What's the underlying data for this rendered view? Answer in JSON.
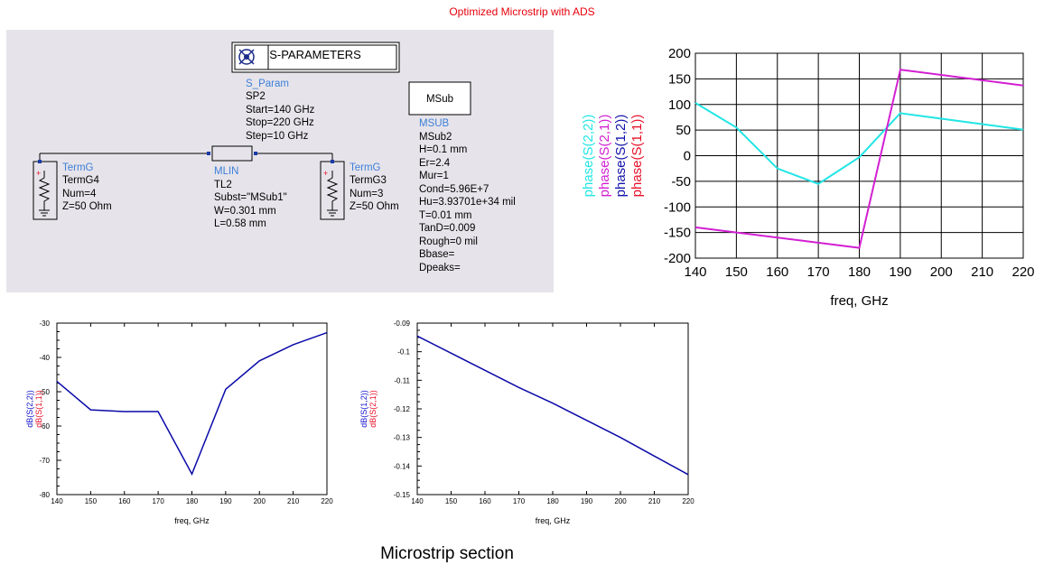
{
  "page_title": "Optimized Microstrip with ADS",
  "bottom_caption": "Microstrip section",
  "schematic": {
    "sparam_button_label": "S-PARAMETERS",
    "sparam_lines": [
      "S_Param",
      "SP2",
      "Start=140 GHz",
      "Stop=220 GHz",
      "Step=10 GHz"
    ],
    "msub_button_label": "MSub",
    "msub_lines": [
      "MSUB",
      "MSub2",
      "H=0.1 mm",
      "Er=2.4",
      "Mur=1",
      "Cond=5.96E+7",
      "Hu=3.93701e+34 mil",
      "T=0.01 mm",
      "TanD=0.009",
      "Rough=0 mil",
      "Bbase=",
      "Dpeaks="
    ],
    "term_left_lines": [
      "TermG",
      "TermG4",
      "Num=4",
      "Z=50 Ohm"
    ],
    "term_right_lines": [
      "TermG",
      "TermG3",
      "Num=3",
      "Z=50 Ohm"
    ],
    "mlin_lines": [
      "MLIN",
      "TL2",
      "Subst=\"MSub1\"",
      "W=0.301 mm",
      "L=0.58 mm"
    ]
  },
  "chart_data": [
    {
      "type": "line",
      "xlabel": "freq, GHz",
      "ylabel": "",
      "xlim": [
        140,
        220
      ],
      "ylim": [
        -200,
        200
      ],
      "xticks": [
        140,
        150,
        160,
        170,
        180,
        190,
        200,
        210,
        220
      ],
      "yticks": [
        200,
        150,
        100,
        50,
        0,
        -50,
        -100,
        -150,
        -200
      ],
      "grid": true,
      "y_series_labels": [
        {
          "text": "phase(S(2,2))",
          "color": "#22e5e5"
        },
        {
          "text": "phase(S(2,1))",
          "color": "#d21fd2"
        },
        {
          "text": "phase(S(1,2))",
          "color": "#1212aa"
        },
        {
          "text": "phase(S(1,1))",
          "color": "#e8102a"
        }
      ],
      "series": [
        {
          "name": "phase(S(2,2))",
          "color": "#22e5e5",
          "x": [
            140,
            150,
            160,
            170,
            180,
            190,
            220
          ],
          "y": [
            103,
            55,
            -25,
            -55,
            -3,
            83,
            51
          ]
        },
        {
          "name": "phase(S(2,1))",
          "color": "#d21fd2",
          "x": [
            140,
            180,
            190,
            220
          ],
          "y": [
            -140,
            -180,
            168,
            137
          ]
        }
      ]
    },
    {
      "type": "line",
      "xlabel": "freq, GHz",
      "ylabel": "",
      "xlim": [
        140,
        220
      ],
      "ylim": [
        -80,
        -30
      ],
      "xticks": [
        140,
        150,
        160,
        170,
        180,
        190,
        200,
        210,
        220
      ],
      "yticks": [
        -30,
        -40,
        -50,
        -60,
        -70,
        -80
      ],
      "grid": false,
      "y_series_labels": [
        {
          "text": "dB(S(2,2))",
          "color": "#1212cc"
        },
        {
          "text": "dB(S(1,1))",
          "color": "#e8102a"
        }
      ],
      "series": [
        {
          "name": "dB(S(2,2))",
          "color": "#0a0aa8",
          "x": [
            140,
            150,
            160,
            170,
            180,
            190,
            200,
            210,
            220
          ],
          "y": [
            -47,
            -55.3,
            -55.8,
            -55.8,
            -74,
            -49.3,
            -41,
            -36.3,
            -32.8
          ]
        }
      ]
    },
    {
      "type": "line",
      "xlabel": "freq, GHz",
      "ylabel": "",
      "xlim": [
        140,
        220
      ],
      "ylim": [
        -0.15,
        -0.09
      ],
      "xticks": [
        140,
        150,
        160,
        170,
        180,
        190,
        200,
        210,
        220
      ],
      "yticks": [
        -0.09,
        -0.1,
        -0.11,
        -0.12,
        -0.13,
        -0.14,
        -0.15
      ],
      "grid": false,
      "y_series_labels": [
        {
          "text": "dB(S(1,2))",
          "color": "#1212cc"
        },
        {
          "text": "dB(S(2,1))",
          "color": "#e8102a"
        }
      ],
      "series": [
        {
          "name": "dB(S(1,2))",
          "color": "#0a0aa8",
          "x": [
            140,
            150,
            160,
            170,
            180,
            190,
            200,
            210,
            220
          ],
          "y": [
            -0.0945,
            -0.1005,
            -0.1065,
            -0.1125,
            -0.118,
            -0.124,
            -0.13,
            -0.1365,
            -0.143
          ]
        }
      ]
    }
  ]
}
